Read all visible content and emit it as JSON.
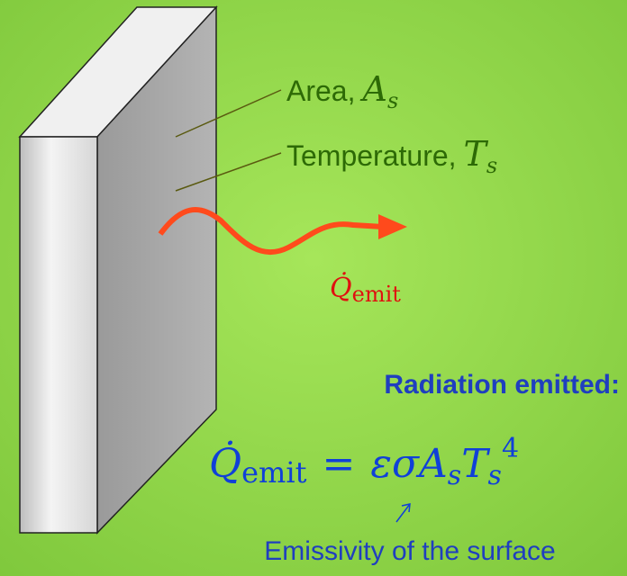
{
  "labels": {
    "area": {
      "text": "Area,",
      "symbol": "A",
      "subscript": "s"
    },
    "temperature": {
      "text": "Temperature,",
      "symbol": "T",
      "subscript": "s"
    }
  },
  "heat_flow": {
    "symbol": "Q̇",
    "subscript": "emit"
  },
  "equation": {
    "heading": "Radiation emitted:",
    "lhs": {
      "symbol": "Q̇",
      "subscript": "emit"
    },
    "operator": "=",
    "rhs": [
      {
        "symbol": "ε"
      },
      {
        "symbol": "σ"
      },
      {
        "symbol": "A",
        "subscript": "s"
      },
      {
        "symbol": "T",
        "subscript": "s",
        "superscript": "4"
      }
    ]
  },
  "annotation": "Emissivity of the surface"
}
